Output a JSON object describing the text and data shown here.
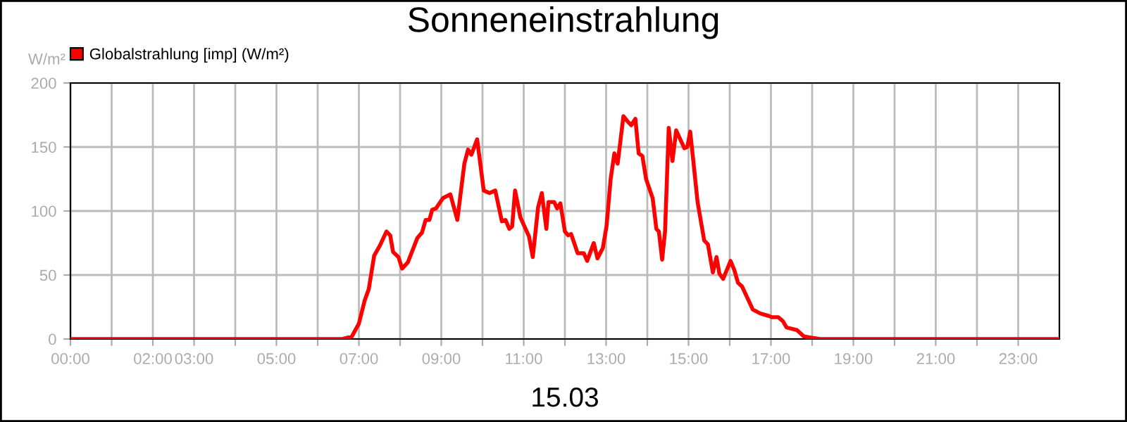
{
  "chart_data": {
    "type": "line",
    "title": "Sonneneinstrahlung",
    "xlabel": "15.03",
    "ylabel": "W/m²",
    "xlim": [
      0,
      24
    ],
    "ylim": [
      0,
      200
    ],
    "yticks": [
      0,
      50,
      100,
      150,
      200
    ],
    "xticks": [
      {
        "value": 0,
        "label": "00:00"
      },
      {
        "value": 1,
        "label": null
      },
      {
        "value": 2,
        "label": "02:00"
      },
      {
        "value": 3,
        "label": "03:00"
      },
      {
        "value": 4,
        "label": null
      },
      {
        "value": 5,
        "label": "05:00"
      },
      {
        "value": 6,
        "label": null
      },
      {
        "value": 7,
        "label": "07:00"
      },
      {
        "value": 8,
        "label": null
      },
      {
        "value": 9,
        "label": "09:00"
      },
      {
        "value": 10,
        "label": null
      },
      {
        "value": 11,
        "label": "11:00"
      },
      {
        "value": 12,
        "label": null
      },
      {
        "value": 13,
        "label": "13:00"
      },
      {
        "value": 14,
        "label": null
      },
      {
        "value": 15,
        "label": "15:00"
      },
      {
        "value": 16,
        "label": null
      },
      {
        "value": 17,
        "label": "17:00"
      },
      {
        "value": 18,
        "label": null
      },
      {
        "value": 19,
        "label": "19:00"
      },
      {
        "value": 20,
        "label": null
      },
      {
        "value": 21,
        "label": "21:00"
      },
      {
        "value": 22,
        "label": null
      },
      {
        "value": 23,
        "label": "23:00"
      }
    ],
    "grid": true,
    "legend": "top left",
    "marker": "none",
    "line_style": "solid",
    "series": [
      {
        "name": "Globalstrahlung [imp] (W/m²)",
        "color": "#ff0000",
        "x": [
          0,
          6.6,
          6.83,
          7.0,
          7.14,
          7.24,
          7.37,
          7.51,
          7.67,
          7.76,
          7.83,
          7.96,
          8.05,
          8.19,
          8.42,
          8.53,
          8.62,
          8.71,
          8.78,
          8.87,
          9.04,
          9.22,
          9.39,
          9.56,
          9.65,
          9.73,
          9.87,
          10.03,
          10.17,
          10.31,
          10.47,
          10.56,
          10.65,
          10.72,
          10.79,
          10.92,
          11.13,
          11.22,
          11.35,
          11.44,
          11.55,
          11.6,
          11.74,
          11.81,
          11.89,
          12.0,
          12.08,
          12.15,
          12.31,
          12.46,
          12.54,
          12.7,
          12.79,
          12.92,
          13.01,
          13.11,
          13.2,
          13.28,
          13.42,
          13.52,
          13.61,
          13.71,
          13.79,
          13.88,
          13.97,
          14.13,
          14.22,
          14.28,
          14.36,
          14.43,
          14.52,
          14.61,
          14.7,
          14.9,
          14.97,
          15.04,
          15.11,
          15.22,
          15.38,
          15.47,
          15.59,
          15.68,
          15.75,
          15.84,
          16.02,
          16.11,
          16.2,
          16.3,
          16.56,
          16.74,
          16.95,
          17.02,
          17.18,
          17.29,
          17.38,
          17.63,
          17.8,
          17.99,
          18.2,
          24
        ],
        "values": [
          0,
          0,
          2,
          12,
          30,
          39,
          65,
          73,
          84,
          81,
          68,
          64,
          55,
          60,
          79,
          83,
          93,
          93,
          101,
          102,
          110,
          113,
          93,
          137,
          148,
          144,
          156,
          116,
          114,
          116,
          92,
          93,
          86,
          88,
          116,
          95,
          80,
          64,
          103,
          114,
          86,
          107,
          107,
          102,
          106,
          84,
          81,
          82,
          67,
          67,
          61,
          75,
          63,
          71,
          88,
          125,
          145,
          137,
          174,
          170,
          167,
          172,
          145,
          143,
          125,
          110,
          86,
          84,
          62,
          84,
          165,
          139,
          163,
          149,
          150,
          162,
          141,
          107,
          77,
          74,
          52,
          64,
          51,
          47,
          61,
          54,
          44,
          41,
          23,
          20,
          18,
          17,
          17,
          14,
          9,
          7,
          2,
          1,
          0,
          0
        ]
      }
    ]
  }
}
